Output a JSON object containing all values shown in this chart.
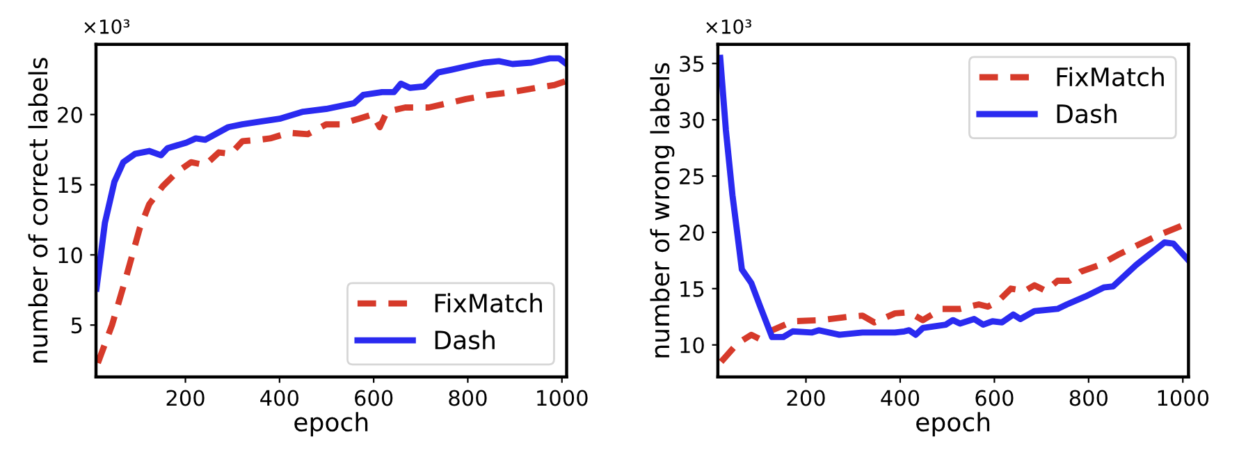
{
  "chart_data": [
    {
      "type": "line",
      "xlabel": "epoch",
      "ylabel": "number of correct labels",
      "annotations": [
        "×10³"
      ],
      "xlim": [
        10,
        1010
      ],
      "ylim": [
        1.3,
        25
      ],
      "xticks": [
        200,
        400,
        600,
        800,
        1000
      ],
      "yticks": [
        5,
        10,
        15,
        20
      ],
      "grid": false,
      "legend": "bottom right",
      "series": [
        {
          "name": "FixMatch",
          "color": "#d63a2a",
          "line_style": "dashed",
          "x": [
            14,
            44,
            73,
            103,
            123,
            152,
            182,
            212,
            242,
            271,
            296,
            321,
            356,
            380,
            420,
            460,
            499,
            529,
            568,
            598,
            613,
            628,
            667,
            717,
            757,
            796,
            846,
            895,
            945,
            984,
            1010
          ],
          "values": [
            2.3,
            5.0,
            8.3,
            11.9,
            13.6,
            14.9,
            15.9,
            16.6,
            16.4,
            17.3,
            17.2,
            18.1,
            18.2,
            18.3,
            18.7,
            18.6,
            19.3,
            19.3,
            19.7,
            20.0,
            19.1,
            20.2,
            20.5,
            20.5,
            20.8,
            21.1,
            21.4,
            21.6,
            21.9,
            22.1,
            22.4
          ]
        },
        {
          "name": "Dash",
          "color": "#2a2af0",
          "line_style": "solid",
          "x": [
            11,
            29,
            49,
            68,
            93,
            123,
            148,
            162,
            202,
            222,
            242,
            291,
            321,
            360,
            400,
            450,
            499,
            558,
            578,
            618,
            643,
            658,
            677,
            707,
            737,
            766,
            806,
            836,
            866,
            895,
            935,
            974,
            994,
            1010
          ],
          "values": [
            7.6,
            12.3,
            15.2,
            16.6,
            17.2,
            17.4,
            17.1,
            17.6,
            18.0,
            18.3,
            18.2,
            19.1,
            19.3,
            19.5,
            19.7,
            20.2,
            20.4,
            20.8,
            21.4,
            21.6,
            21.6,
            22.2,
            21.9,
            22.0,
            23.0,
            23.2,
            23.5,
            23.7,
            23.8,
            23.6,
            23.7,
            24.0,
            24.0,
            23.6
          ]
        }
      ]
    },
    {
      "type": "line",
      "xlabel": "epoch",
      "ylabel": "number of wrong labels",
      "annotations": [
        "×10³"
      ],
      "xlim": [
        13,
        1012
      ],
      "ylim": [
        7.15,
        36.7
      ],
      "xticks": [
        200,
        400,
        600,
        800,
        1000
      ],
      "yticks": [
        10,
        15,
        20,
        25,
        30,
        35
      ],
      "grid": false,
      "legend": "top right",
      "series": [
        {
          "name": "FixMatch",
          "color": "#d63a2a",
          "line_style": "dashed",
          "x": [
            20,
            54,
            84,
            103,
            123,
            172,
            232,
            291,
            320,
            345,
            389,
            419,
            448,
            488,
            527,
            567,
            586,
            606,
            635,
            665,
            685,
            709,
            734,
            759,
            783,
            823,
            862,
            901,
            951,
            1010
          ],
          "values": [
            8.5,
            10.1,
            10.9,
            10.5,
            11.2,
            12.1,
            12.2,
            12.5,
            12.6,
            12.0,
            12.8,
            12.9,
            12.2,
            13.2,
            13.2,
            13.6,
            13.4,
            13.8,
            15.0,
            14.8,
            15.3,
            14.8,
            15.7,
            15.7,
            16.5,
            17.1,
            18.0,
            18.8,
            19.8,
            20.8
          ]
        },
        {
          "name": "Dash",
          "color": "#2a2af0",
          "line_style": "solid",
          "x": [
            18,
            30,
            44,
            64,
            84,
            103,
            128,
            152,
            172,
            212,
            227,
            271,
            320,
            389,
            409,
            419,
            433,
            448,
            497,
            512,
            527,
            557,
            576,
            596,
            616,
            640,
            655,
            685,
            734,
            754,
            793,
            832,
            852,
            901,
            961,
            980,
            1010
          ],
          "values": [
            35.5,
            29.1,
            23.3,
            16.7,
            15.5,
            13.4,
            10.7,
            10.7,
            11.2,
            11.1,
            11.3,
            10.9,
            11.1,
            11.1,
            11.2,
            11.3,
            10.9,
            11.5,
            11.8,
            12.2,
            11.9,
            12.3,
            11.8,
            12.1,
            12.0,
            12.7,
            12.3,
            13.0,
            13.2,
            13.6,
            14.3,
            15.1,
            15.2,
            17.1,
            19.1,
            19.0,
            17.6
          ]
        }
      ]
    }
  ]
}
